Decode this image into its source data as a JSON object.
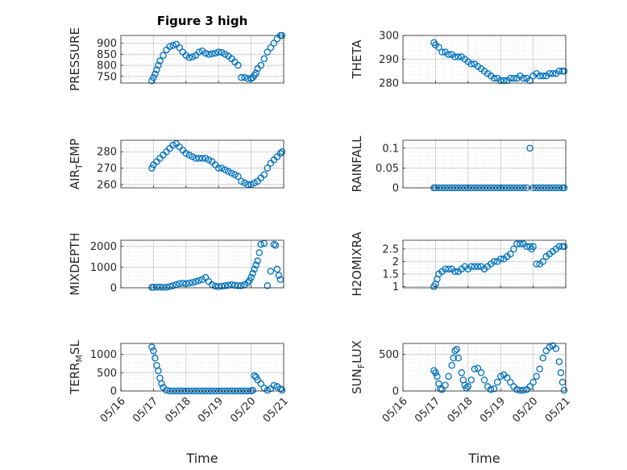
{
  "figure_title": "Figure 3 high",
  "marker_color": "#0072BD",
  "x_tick_labels": [
    "05/16",
    "05/17",
    "05/18",
    "05/19",
    "05/20",
    "05/21"
  ],
  "chart_data": [
    {
      "id": "pressure",
      "type": "scatter",
      "ylabel": "PRESSURE",
      "title": "Figure 3 high",
      "xlim": [
        0,
        5
      ],
      "ylim": [
        720,
        935
      ],
      "yticks": [
        750,
        800,
        850,
        900
      ],
      "ytick_labels": [
        "750",
        "800",
        "850",
        "900"
      ],
      "xlabel": "",
      "x": [
        0.95,
        1.0,
        1.05,
        1.1,
        1.15,
        1.2,
        1.3,
        1.4,
        1.5,
        1.6,
        1.7,
        1.8,
        1.9,
        2.0,
        2.1,
        2.2,
        2.3,
        2.4,
        2.5,
        2.6,
        2.7,
        2.8,
        2.9,
        3.0,
        3.1,
        3.2,
        3.3,
        3.4,
        3.5,
        3.6,
        3.7,
        3.8,
        3.9,
        4.0,
        4.05,
        4.1,
        4.15,
        4.2,
        4.3,
        4.4,
        4.5,
        4.6,
        4.7,
        4.8,
        4.9,
        4.95
      ],
      "y": [
        730,
        745,
        760,
        780,
        800,
        820,
        845,
        870,
        885,
        890,
        895,
        880,
        860,
        845,
        835,
        838,
        845,
        860,
        865,
        855,
        850,
        852,
        855,
        860,
        858,
        850,
        842,
        830,
        815,
        800,
        745,
        745,
        740,
        740,
        745,
        755,
        765,
        785,
        800,
        830,
        860,
        880,
        900,
        920,
        935,
        935
      ]
    },
    {
      "id": "theta",
      "type": "scatter",
      "ylabel": "THETA",
      "xlim": [
        0,
        5
      ],
      "ylim": [
        280,
        300
      ],
      "yticks": [
        280,
        290,
        300
      ],
      "ytick_labels": [
        "280",
        "290",
        "300"
      ],
      "xlabel": "",
      "x": [
        0.95,
        1.0,
        1.1,
        1.2,
        1.3,
        1.4,
        1.5,
        1.6,
        1.7,
        1.8,
        1.9,
        2.0,
        2.1,
        2.2,
        2.3,
        2.4,
        2.5,
        2.6,
        2.7,
        2.8,
        2.9,
        3.0,
        3.1,
        3.2,
        3.3,
        3.4,
        3.5,
        3.6,
        3.7,
        3.8,
        3.9,
        4.0,
        4.1,
        4.2,
        4.3,
        4.4,
        4.5,
        4.6,
        4.7,
        4.8,
        4.9,
        4.95
      ],
      "y": [
        297,
        296,
        295,
        293,
        293,
        292,
        292,
        291,
        291,
        291,
        290,
        289,
        288,
        288,
        287,
        286,
        285,
        284,
        283,
        282,
        282,
        281,
        281,
        281,
        282,
        282,
        282,
        283,
        282,
        282,
        281,
        283,
        284,
        283,
        283,
        283,
        284,
        284,
        284,
        285,
        285,
        285
      ]
    },
    {
      "id": "air_temp",
      "type": "scatter",
      "ylabel": "AIR_TEMP",
      "xlim": [
        0,
        5
      ],
      "ylim": [
        258,
        287
      ],
      "yticks": [
        260,
        270,
        280
      ],
      "ytick_labels": [
        "260",
        "270",
        "280"
      ],
      "xlabel": "",
      "x": [
        0.95,
        1.0,
        1.1,
        1.2,
        1.3,
        1.4,
        1.5,
        1.6,
        1.7,
        1.8,
        1.9,
        2.0,
        2.1,
        2.2,
        2.3,
        2.4,
        2.5,
        2.6,
        2.7,
        2.8,
        2.9,
        3.0,
        3.1,
        3.2,
        3.3,
        3.4,
        3.5,
        3.6,
        3.7,
        3.8,
        3.9,
        4.0,
        4.1,
        4.2,
        4.3,
        4.4,
        4.5,
        4.6,
        4.7,
        4.8,
        4.9,
        4.95
      ],
      "y": [
        270,
        272,
        274,
        276,
        278,
        280,
        282,
        284,
        285,
        283,
        281,
        279,
        278,
        277,
        276,
        276,
        276,
        276,
        275,
        274,
        272,
        270,
        270,
        269,
        268,
        267,
        266,
        265,
        262,
        261,
        260,
        260,
        261,
        262,
        264,
        266,
        270,
        273,
        275,
        277,
        279,
        280
      ]
    },
    {
      "id": "rainfall",
      "type": "scatter",
      "ylabel": "RAINFALL",
      "xlim": [
        0,
        5
      ],
      "ylim": [
        0,
        0.12
      ],
      "yticks": [
        0,
        0.05,
        0.1
      ],
      "ytick_labels": [
        "0",
        "0.05",
        "0.1"
      ],
      "xlabel": "",
      "x": [
        0.95,
        1.0,
        1.1,
        1.2,
        1.3,
        1.4,
        1.5,
        1.6,
        1.7,
        1.8,
        1.9,
        2.0,
        2.1,
        2.2,
        2.3,
        2.4,
        2.5,
        2.6,
        2.7,
        2.8,
        2.9,
        3.0,
        3.1,
        3.2,
        3.3,
        3.4,
        3.5,
        3.6,
        3.7,
        3.8,
        3.9,
        4.0,
        4.1,
        4.2,
        4.3,
        4.4,
        4.5,
        4.6,
        4.7,
        4.8,
        4.9,
        4.95
      ],
      "y": [
        0,
        0,
        0,
        0,
        0,
        0,
        0,
        0,
        0,
        0,
        0,
        0,
        0,
        0,
        0,
        0,
        0,
        0,
        0,
        0,
        0,
        0,
        0,
        0,
        0,
        0,
        0,
        0,
        0,
        0,
        0.1,
        0,
        0,
        0,
        0,
        0,
        0,
        0,
        0,
        0,
        0,
        0
      ]
    },
    {
      "id": "mixdepth",
      "type": "scatter",
      "ylabel": "MIXDEPTH",
      "xlim": [
        0,
        5
      ],
      "ylim": [
        0,
        2300
      ],
      "yticks": [
        0,
        1000,
        2000
      ],
      "ytick_labels": [
        "0",
        "1000",
        "2000"
      ],
      "xlabel": "",
      "x": [
        0.95,
        1.0,
        1.1,
        1.2,
        1.3,
        1.4,
        1.5,
        1.6,
        1.7,
        1.8,
        1.9,
        2.0,
        2.1,
        2.2,
        2.3,
        2.4,
        2.5,
        2.6,
        2.7,
        2.8,
        2.9,
        3.0,
        3.1,
        3.2,
        3.3,
        3.4,
        3.5,
        3.6,
        3.7,
        3.8,
        3.9,
        3.95,
        4.0,
        4.05,
        4.1,
        4.15,
        4.2,
        4.25,
        4.3,
        4.4,
        4.5,
        4.6,
        4.7,
        4.75,
        4.8,
        4.85,
        4.9
      ],
      "y": [
        20,
        25,
        30,
        35,
        20,
        25,
        60,
        100,
        150,
        200,
        220,
        200,
        230,
        260,
        300,
        350,
        400,
        500,
        300,
        150,
        80,
        60,
        80,
        100,
        120,
        150,
        120,
        100,
        100,
        150,
        250,
        350,
        500,
        700,
        900,
        1100,
        1300,
        1700,
        2100,
        2150,
        100,
        800,
        2100,
        2050,
        900,
        600,
        400
      ]
    },
    {
      "id": "h2omixra",
      "type": "scatter",
      "ylabel": "H2OMIXRA",
      "xlim": [
        0,
        5
      ],
      "ylim": [
        0.95,
        2.85
      ],
      "yticks": [
        1,
        1.5,
        2,
        2.5
      ],
      "ytick_labels": [
        "1",
        "1.5",
        "2",
        "2.5"
      ],
      "xlabel": "",
      "x": [
        0.95,
        1.0,
        1.05,
        1.1,
        1.2,
        1.3,
        1.4,
        1.5,
        1.6,
        1.7,
        1.8,
        1.9,
        2.0,
        2.1,
        2.2,
        2.3,
        2.4,
        2.5,
        2.6,
        2.7,
        2.8,
        2.9,
        3.0,
        3.1,
        3.2,
        3.3,
        3.4,
        3.5,
        3.6,
        3.7,
        3.8,
        3.9,
        3.95,
        4.0,
        4.1,
        4.2,
        4.3,
        4.4,
        4.5,
        4.6,
        4.7,
        4.8,
        4.9,
        4.95
      ],
      "y": [
        1.0,
        1.1,
        1.3,
        1.5,
        1.6,
        1.7,
        1.7,
        1.7,
        1.6,
        1.6,
        1.7,
        1.8,
        1.7,
        1.8,
        1.8,
        1.8,
        1.8,
        1.7,
        1.8,
        1.9,
        2.0,
        2.0,
        2.1,
        2.1,
        2.2,
        2.3,
        2.5,
        2.7,
        2.7,
        2.7,
        2.6,
        2.6,
        2.5,
        2.6,
        1.9,
        1.9,
        2.0,
        2.2,
        2.3,
        2.4,
        2.5,
        2.6,
        2.6,
        2.6
      ]
    },
    {
      "id": "terr_msl",
      "type": "scatter",
      "ylabel": "TERR_MSL",
      "xlim": [
        0,
        5
      ],
      "ylim": [
        0,
        1300
      ],
      "yticks": [
        0,
        500,
        1000
      ],
      "ytick_labels": [
        "0",
        "500",
        "1000"
      ],
      "xlabel": "Time",
      "x": [
        0.95,
        1.0,
        1.05,
        1.1,
        1.15,
        1.2,
        1.25,
        1.3,
        1.4,
        1.5,
        1.6,
        1.7,
        1.8,
        1.9,
        2.0,
        2.1,
        2.2,
        2.3,
        2.4,
        2.5,
        2.6,
        2.7,
        2.8,
        2.9,
        3.0,
        3.1,
        3.2,
        3.3,
        3.4,
        3.5,
        3.6,
        3.7,
        3.8,
        3.9,
        4.0,
        4.05,
        4.1,
        4.15,
        4.2,
        4.3,
        4.4,
        4.5,
        4.6,
        4.7,
        4.8,
        4.9,
        4.95
      ],
      "y": [
        1200,
        1100,
        900,
        700,
        550,
        350,
        200,
        100,
        20,
        0,
        0,
        0,
        0,
        0,
        0,
        0,
        0,
        0,
        0,
        0,
        0,
        0,
        0,
        0,
        0,
        0,
        0,
        0,
        0,
        0,
        0,
        0,
        0,
        0,
        0,
        20,
        420,
        380,
        300,
        200,
        80,
        20,
        60,
        150,
        120,
        60,
        20
      ]
    },
    {
      "id": "sun_flux",
      "type": "scatter",
      "ylabel": "SUN_FLUX",
      "xlim": [
        0,
        5
      ],
      "ylim": [
        0,
        650
      ],
      "yticks": [
        0,
        500
      ],
      "ytick_labels": [
        "0",
        "500"
      ],
      "xlabel": "Time",
      "x": [
        0.95,
        1.0,
        1.05,
        1.1,
        1.15,
        1.2,
        1.3,
        1.4,
        1.5,
        1.55,
        1.6,
        1.65,
        1.7,
        1.8,
        1.85,
        1.9,
        1.95,
        2.0,
        2.1,
        2.2,
        2.3,
        2.4,
        2.5,
        2.6,
        2.7,
        2.8,
        2.9,
        3.0,
        3.1,
        3.2,
        3.3,
        3.4,
        3.5,
        3.6,
        3.7,
        3.8,
        3.9,
        4.0,
        4.1,
        4.2,
        4.3,
        4.4,
        4.5,
        4.6,
        4.7,
        4.8,
        4.85,
        4.9,
        4.95
      ],
      "y": [
        280,
        250,
        200,
        100,
        30,
        20,
        80,
        200,
        350,
        450,
        550,
        570,
        450,
        250,
        150,
        80,
        40,
        60,
        150,
        300,
        310,
        250,
        150,
        60,
        20,
        30,
        120,
        200,
        220,
        180,
        120,
        60,
        20,
        10,
        10,
        20,
        60,
        120,
        200,
        300,
        450,
        550,
        600,
        620,
        580,
        400,
        250,
        120,
        10
      ]
    }
  ]
}
